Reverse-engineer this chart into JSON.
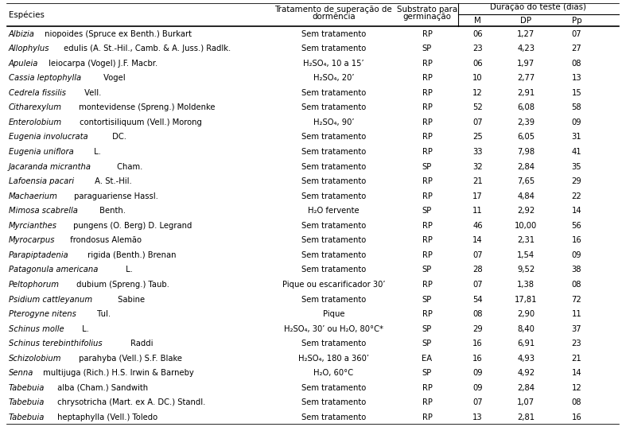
{
  "rows": [
    [
      "Albizia niopoides (Spruce ex Benth.) Burkart",
      "Sem tratamento",
      "RP",
      "06",
      "1,27",
      "07"
    ],
    [
      "Allophylus edulis (A. St.-Hil., Camb. & A. Juss.) Radlk.",
      "Sem tratamento",
      "SP",
      "23",
      "4,23",
      "27"
    ],
    [
      "Apuleia leiocarpa (Vogel) J.F. Macbr.",
      "H₂SO₄, 10 a 15’",
      "RP",
      "06",
      "1,97",
      "08"
    ],
    [
      "Cassia leptophylla Vogel",
      "H₂SO₄, 20’",
      "RP",
      "10",
      "2,77",
      "13"
    ],
    [
      "Cedrela fissilis Vell.",
      "Sem tratamento",
      "RP",
      "12",
      "2,91",
      "15"
    ],
    [
      "Citharexylum montevidense (Spreng.) Moldenke",
      "Sem tratamento",
      "RP",
      "52",
      "6,08",
      "58"
    ],
    [
      "Enterolobium contortisiliquum (Vell.) Morong",
      "H₂SO₄, 90’",
      "RP",
      "07",
      "2,39",
      "09"
    ],
    [
      "Eugenia involucrata DC.",
      "Sem tratamento",
      "RP",
      "25",
      "6,05",
      "31"
    ],
    [
      "Eugenia uniflora L.",
      "Sem tratamento",
      "RP",
      "33",
      "7,98",
      "41"
    ],
    [
      "Jacaranda micrantha Cham.",
      "Sem tratamento",
      "SP",
      "32",
      "2,84",
      "35"
    ],
    [
      "Lafoensia pacari A. St.-Hil.",
      "Sem tratamento",
      "RP",
      "21",
      "7,65",
      "29"
    ],
    [
      "Machaerium paraguariense Hassl.",
      "Sem tratamento",
      "RP",
      "17",
      "4,84",
      "22"
    ],
    [
      "Mimosa scabrella Benth.",
      "H₂O fervente",
      "SP",
      "11",
      "2,92",
      "14"
    ],
    [
      "Myrcianthes pungens (O. Berg) D. Legrand",
      "Sem tratamento",
      "RP",
      "46",
      "10,00",
      "56"
    ],
    [
      "Myrocarpus frondosus Alemão",
      "Sem tratamento",
      "RP",
      "14",
      "2,31",
      "16"
    ],
    [
      "Parapiptadenia rigida (Benth.) Brenan",
      "Sem tratamento",
      "RP",
      "07",
      "1,54",
      "09"
    ],
    [
      "Patagonula americana L.",
      "Sem tratamento",
      "SP",
      "28",
      "9,52",
      "38"
    ],
    [
      "Peltophorum dubium (Spreng.) Taub.",
      "Pique ou escarificador 30’",
      "RP",
      "07",
      "1,38",
      "08"
    ],
    [
      "Psidium cattleyanum Sabine",
      "Sem tratamento",
      "SP",
      "54",
      "17,81",
      "72"
    ],
    [
      "Pterogyne nitens Tul.",
      "Pique",
      "RP",
      "08",
      "2,90",
      "11"
    ],
    [
      "Schinus molle L.",
      "H₂SO₄, 30’ ou H₂O, 80°C*",
      "SP",
      "29",
      "8,40",
      "37"
    ],
    [
      "Schinus terebinthifolius Raddi",
      "Sem tratamento",
      "SP",
      "16",
      "6,91",
      "23"
    ],
    [
      "Schizolobium parahyba (Vell.) S.F. Blake",
      "H₂SO₄, 180 a 360’",
      "EA",
      "16",
      "4,93",
      "21"
    ],
    [
      "Senna multijuga (Rich.) H.S. Irwin & Barneby",
      "H₂O, 60°C",
      "SP",
      "09",
      "4,92",
      "14"
    ],
    [
      "Tabebuia alba (Cham.) Sandwith",
      "Sem tratamento",
      "RP",
      "09",
      "2,84",
      "12"
    ],
    [
      "Tabebuia chrysotricha (Mart. ex A. DC.) Standl.",
      "Sem tratamento",
      "RP",
      "07",
      "1,07",
      "08"
    ],
    [
      "Tabebuia heptaphylla (Vell.) Toledo",
      "Sem tratamento",
      "RP",
      "13",
      "2,81",
      "16"
    ]
  ],
  "italic_words": [
    1,
    1,
    1,
    2,
    2,
    1,
    1,
    2,
    2,
    2,
    2,
    1,
    2,
    1,
    1,
    1,
    2,
    1,
    2,
    2,
    2,
    2,
    1,
    1,
    1,
    1,
    1
  ],
  "font_size": 7.2,
  "header_font_size": 7.4
}
